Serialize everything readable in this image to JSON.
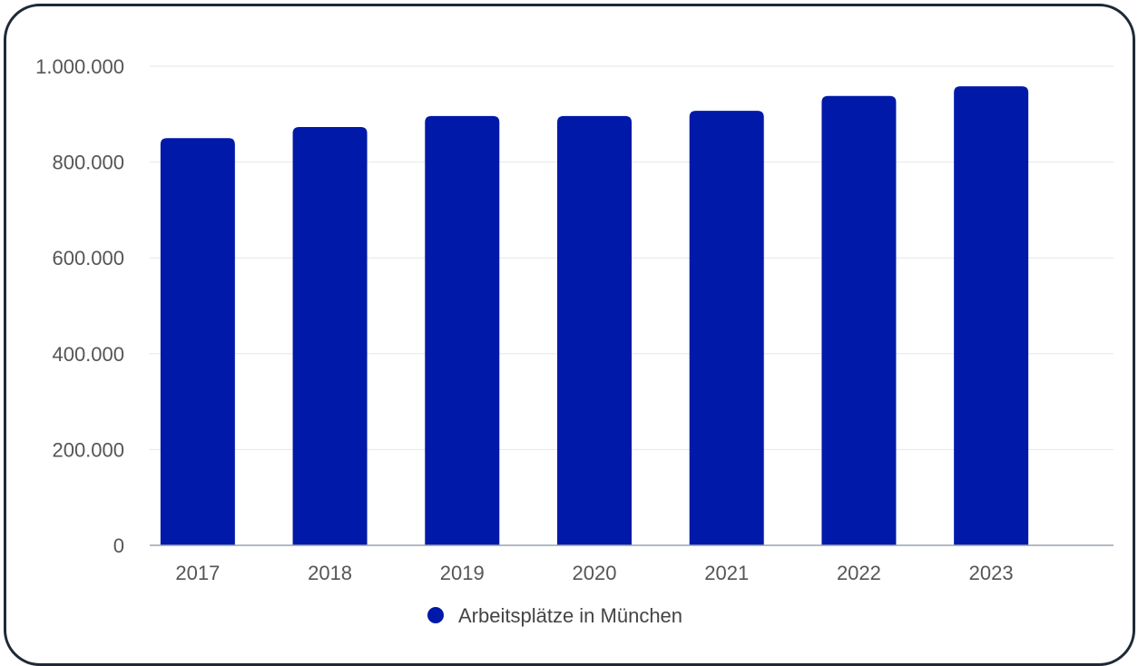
{
  "chart_data": {
    "type": "bar",
    "categories": [
      "2017",
      "2018",
      "2019",
      "2020",
      "2021",
      "2022",
      "2023"
    ],
    "series": [
      {
        "name": "Arbeitsplätze in München",
        "values": [
          850000,
          873000,
          896000,
          896000,
          907000,
          938000,
          958000
        ]
      }
    ],
    "ylim": [
      0,
      1000000
    ],
    "yticks": [
      0,
      200000,
      400000,
      600000,
      800000,
      1000000
    ],
    "ytick_labels": [
      "0",
      "200.000",
      "400.000",
      "600.000",
      "800.000",
      "1.000.000"
    ],
    "grid": true,
    "legend_position": "bottom",
    "bar_color": "#0019a8",
    "grid_color": "#e6e6e6",
    "axis_color": "#9aa3b2",
    "border_color": "#1f2937"
  }
}
